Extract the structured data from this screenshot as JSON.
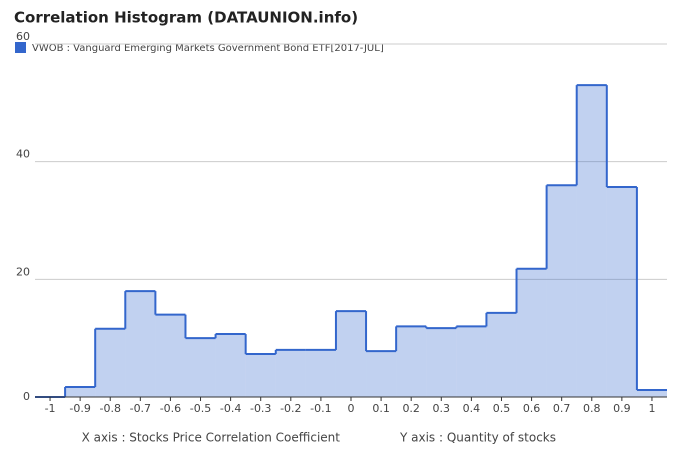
{
  "chart_data": {
    "type": "histogram",
    "title": "Correlation Histogram (DATAUNION.info)",
    "x_label": "X axis : Stocks Price Correlation Coefficient",
    "y_label": "Y axis : Quantity of stocks",
    "bins": [
      -1.05,
      -0.95,
      -0.85,
      -0.75,
      -0.65,
      -0.55,
      -0.45,
      -0.35,
      -0.25,
      -0.15,
      -0.05,
      0.05,
      0.15,
      0.25,
      0.35,
      0.45,
      0.55,
      0.65,
      0.75,
      0.85,
      0.95,
      1.05
    ],
    "series": [
      {
        "name": "VWOB : Vanguard Emerging Markets Government Bond ETF[2017-JUL]",
        "color": "#3366cc",
        "values": [
          0,
          1.7,
          11.6,
          18,
          14,
          10,
          10.7,
          7.3,
          8,
          8,
          14.6,
          7.8,
          12,
          11.7,
          12,
          14.3,
          21.8,
          36,
          53,
          35.7,
          1.2
        ]
      }
    ],
    "xlim": [
      -1.05,
      1.05
    ],
    "xticks": [
      -1,
      -0.9,
      -0.8,
      -0.7,
      -0.6,
      -0.5,
      -0.4,
      -0.3,
      -0.2,
      -0.1,
      0,
      0.1,
      0.2,
      0.3,
      0.4,
      0.5,
      0.6,
      0.7,
      0.8,
      0.9,
      1
    ],
    "ylim": [
      0,
      60
    ],
    "yticks": [
      0,
      20,
      40,
      60
    ],
    "grid": true
  }
}
